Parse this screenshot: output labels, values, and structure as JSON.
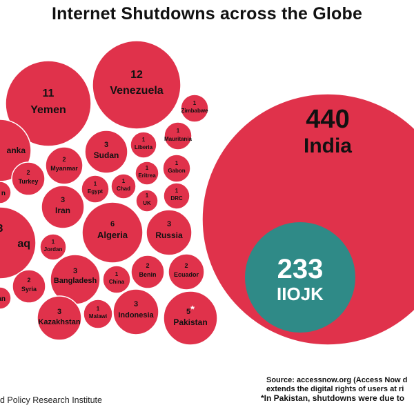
{
  "title": "Internet Shutdowns across the Globe",
  "footer": {
    "institute": "d Policy Research Institute",
    "source_line_1": "Source: accessnow.org (Access Now d",
    "source_line_2": "extends the digital rights of users at ri",
    "source_line_3": "*In Pakistan, shutdowns were due to"
  },
  "colors": {
    "bubble": "#e0324b",
    "bubble_stroke": "#ffffff",
    "highlight": "#2f8a87",
    "text": "#111111",
    "highlight_text": "#ffffff"
  },
  "chart_data": {
    "type": "bubble",
    "title": "Internet Shutdowns across the Globe",
    "series": [
      {
        "label": "India",
        "value": 440
      },
      {
        "label": "IIOJK",
        "value": 233,
        "highlight": true
      },
      {
        "label": "Venezuela",
        "value": 12
      },
      {
        "label": "Yemen",
        "value": 11
      },
      {
        "label": "anka",
        "value": null
      },
      {
        "label": "aq",
        "value": null,
        "value_text": "3"
      },
      {
        "label": "n",
        "value": null
      },
      {
        "label": "an",
        "value": null
      },
      {
        "label": "Sudan",
        "value": 3
      },
      {
        "label": "Liberia",
        "value": 1
      },
      {
        "label": "Mauritania",
        "value": 1
      },
      {
        "label": "Zimbabwe",
        "value": 1
      },
      {
        "label": "Myanmar",
        "value": 2
      },
      {
        "label": "Turkey",
        "value": 2
      },
      {
        "label": "Eritrea",
        "value": 1
      },
      {
        "label": "Gabon",
        "value": 1
      },
      {
        "label": "Egypt",
        "value": 1
      },
      {
        "label": "Chad",
        "value": 1
      },
      {
        "label": "UK",
        "value": 1
      },
      {
        "label": "DRC",
        "value": 1
      },
      {
        "label": "Iran",
        "value": 3
      },
      {
        "label": "Algeria",
        "value": 6
      },
      {
        "label": "Russia",
        "value": 3
      },
      {
        "label": "Jordan",
        "value": 1
      },
      {
        "label": "Bangladesh",
        "value": 3
      },
      {
        "label": "China",
        "value": 1
      },
      {
        "label": "Benin",
        "value": 2
      },
      {
        "label": "Ecuador",
        "value": 2
      },
      {
        "label": "Syria",
        "value": 2
      },
      {
        "label": "Kazakhstan",
        "value": 3
      },
      {
        "label": "Malawi",
        "value": 1
      },
      {
        "label": "Indonesia",
        "value": 3
      },
      {
        "label": "Pakistan",
        "value": 5,
        "note": "*"
      }
    ]
  }
}
